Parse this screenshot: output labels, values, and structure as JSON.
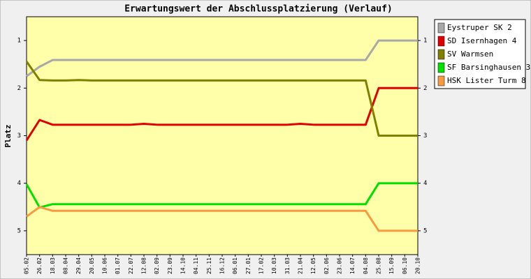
{
  "chart_data": {
    "type": "line",
    "title": "Erwartungswert der Abschlussplatzierung (Verlauf)",
    "y_label": "Platz",
    "categories": [
      "05.02",
      "26.02",
      "18.03",
      "08.04",
      "29.04",
      "20.05",
      "10.06",
      "01.07",
      "22.07",
      "12.08",
      "02.09",
      "23.09",
      "14.10",
      "04.11",
      "25.11",
      "16.12",
      "06.01",
      "27.01",
      "17.02",
      "10.03",
      "31.03",
      "21.04",
      "12.05",
      "02.06",
      "23.06",
      "14.07",
      "04.08",
      "25.08",
      "15.09",
      "06.10",
      "20.10"
    ],
    "series": [
      {
        "name": "Eystruper SK 2",
        "color": "#a8a8a8",
        "values": [
          1.75,
          1.55,
          1.41,
          1.41,
          1.41,
          1.41,
          1.41,
          1.41,
          1.41,
          1.41,
          1.41,
          1.41,
          1.41,
          1.41,
          1.41,
          1.41,
          1.41,
          1.41,
          1.41,
          1.41,
          1.41,
          1.41,
          1.41,
          1.41,
          1.41,
          1.41,
          1.41,
          1.0,
          1.0,
          1.0,
          1.0
        ]
      },
      {
        "name": "SD Isernhagen 4",
        "color": "#e00000",
        "values": [
          3.1,
          2.67,
          2.77,
          2.77,
          2.77,
          2.77,
          2.77,
          2.77,
          2.77,
          2.75,
          2.77,
          2.77,
          2.77,
          2.77,
          2.77,
          2.77,
          2.77,
          2.77,
          2.77,
          2.77,
          2.77,
          2.75,
          2.77,
          2.77,
          2.77,
          2.77,
          2.77,
          2.0,
          2.0,
          2.0,
          2.0
        ]
      },
      {
        "name": "SV Warmsen",
        "color": "#808000",
        "values": [
          1.44,
          1.83,
          1.84,
          1.84,
          1.83,
          1.84,
          1.84,
          1.84,
          1.84,
          1.84,
          1.84,
          1.84,
          1.84,
          1.84,
          1.84,
          1.84,
          1.84,
          1.84,
          1.84,
          1.84,
          1.84,
          1.84,
          1.84,
          1.84,
          1.84,
          1.84,
          1.84,
          3.0,
          3.0,
          3.0,
          3.0
        ]
      },
      {
        "name": "SF Barsinghausen 3",
        "color": "#00e000",
        "values": [
          4.02,
          4.51,
          4.44,
          4.44,
          4.44,
          4.44,
          4.44,
          4.44,
          4.44,
          4.44,
          4.44,
          4.44,
          4.44,
          4.44,
          4.44,
          4.44,
          4.44,
          4.44,
          4.44,
          4.44,
          4.44,
          4.44,
          4.44,
          4.44,
          4.44,
          4.44,
          4.44,
          4.0,
          4.0,
          4.0,
          4.0
        ]
      },
      {
        "name": "HSK Lister Turm 8",
        "color": "#f89a40",
        "values": [
          4.7,
          4.5,
          4.58,
          4.58,
          4.58,
          4.58,
          4.58,
          4.58,
          4.58,
          4.58,
          4.58,
          4.58,
          4.58,
          4.58,
          4.58,
          4.58,
          4.58,
          4.58,
          4.58,
          4.58,
          4.58,
          4.58,
          4.58,
          4.58,
          4.58,
          4.58,
          4.58,
          5.0,
          5.0,
          5.0,
          5.0
        ]
      }
    ],
    "ylim": [
      5.5,
      0.5
    ],
    "yticks": [
      1,
      2,
      3,
      4,
      5
    ],
    "right_axis_ticks": true,
    "grid": false,
    "legend_position": "right",
    "plot_background": "#ffffaa"
  }
}
